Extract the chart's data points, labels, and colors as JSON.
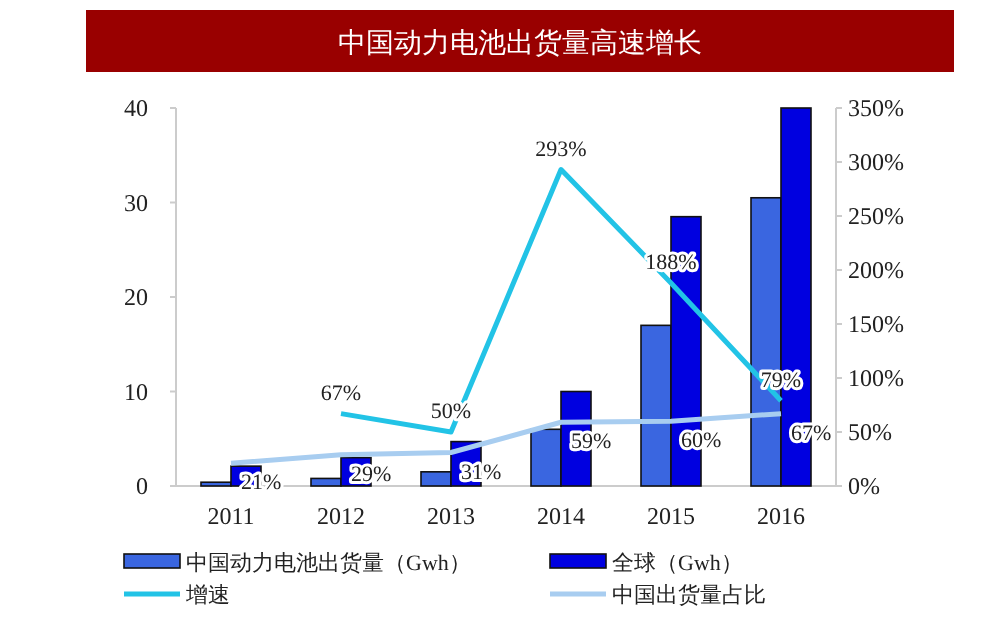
{
  "chart_data": {
    "type": "bar",
    "title": "中国动力电池出货量高速增长",
    "categories": [
      "2011",
      "2012",
      "2013",
      "2014",
      "2015",
      "2016"
    ],
    "ylim": [
      0,
      40
    ],
    "yticks": [
      0,
      10,
      20,
      30,
      40
    ],
    "y2lim": [
      0,
      350
    ],
    "y2ticks": [
      {
        "value": 0,
        "label": "0%"
      },
      {
        "value": 50,
        "label": "50%"
      },
      {
        "value": 100,
        "label": "100%"
      },
      {
        "value": 150,
        "label": "150%"
      },
      {
        "value": 200,
        "label": "200%"
      },
      {
        "value": 250,
        "label": "250%"
      },
      {
        "value": 300,
        "label": "300%"
      },
      {
        "value": 350,
        "label": "350%"
      }
    ],
    "legend": "bottom",
    "grid": false,
    "series": [
      {
        "name": "中国动力电池出货量（Gwh）",
        "color": "#3a66e0",
        "values": [
          0.4,
          0.8,
          1.5,
          6,
          17,
          30.5
        ]
      },
      {
        "name": "全球（Gwh）",
        "color": "#0000e0",
        "values": [
          2.1,
          3,
          4.7,
          10,
          28.5,
          40
        ]
      },
      {
        "name": "增速",
        "type": "line",
        "axis": "y2",
        "color": "#22c3e6",
        "values": [
          null,
          67,
          50,
          293,
          188,
          79
        ],
        "value_labels": [
          null,
          "67%",
          "50%",
          "293%",
          "188%",
          "79%"
        ]
      },
      {
        "name": "中国出货量占比",
        "type": "line",
        "axis": "y2",
        "color": "#a8cdf0",
        "values": [
          21,
          29,
          31,
          59,
          60,
          67
        ],
        "value_labels": [
          "21%",
          "29%",
          "31%",
          "59%",
          "60%",
          "67%"
        ]
      }
    ]
  }
}
